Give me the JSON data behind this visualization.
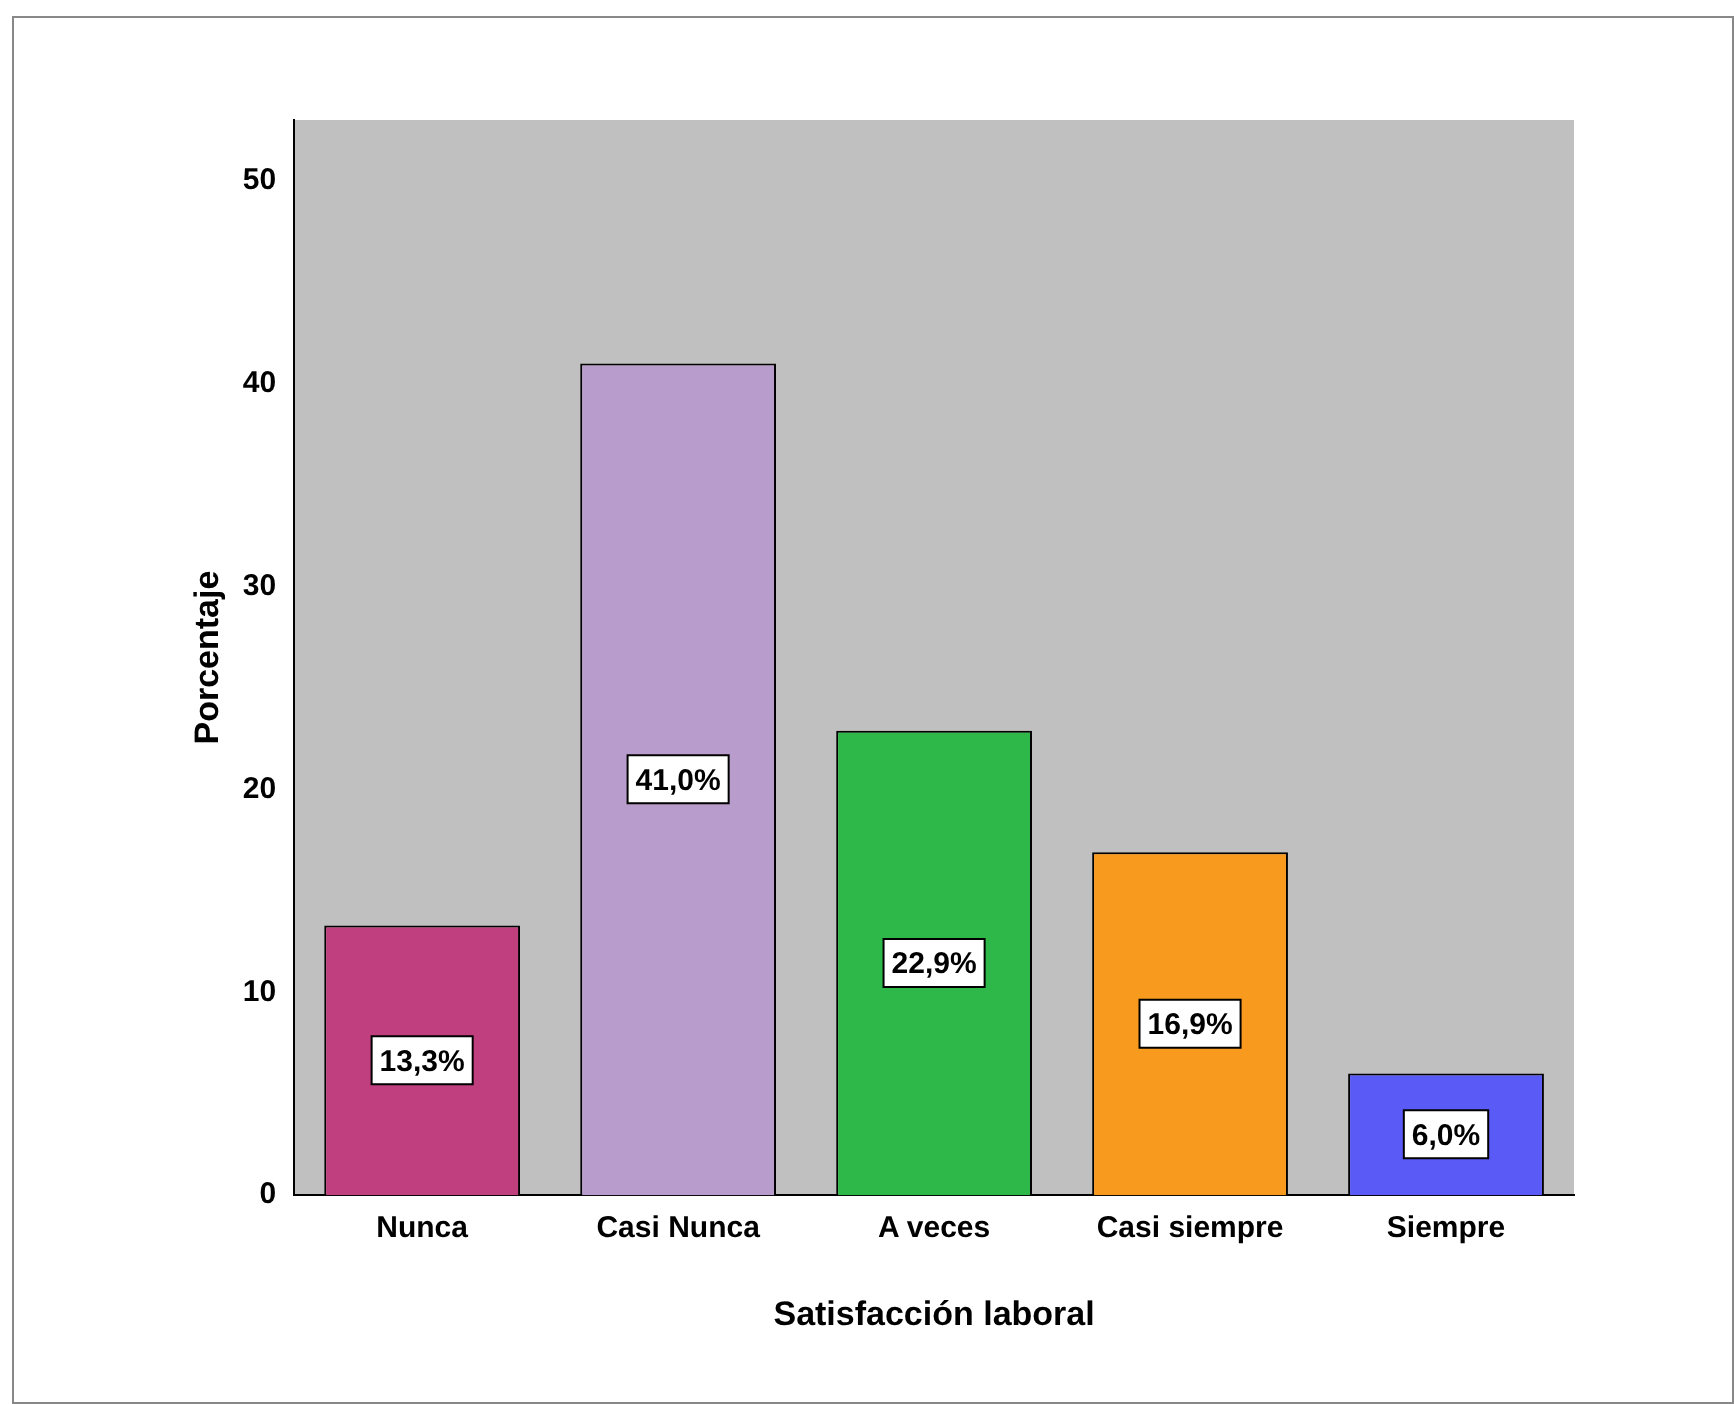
{
  "chart_data": {
    "type": "bar",
    "xlabel": "Satisfacción laboral",
    "ylabel": "Porcentaje",
    "categories": [
      "Nunca",
      "Casi Nunca",
      "A veces",
      "Casi siempre",
      "Siempre"
    ],
    "values": [
      13.3,
      41.0,
      22.9,
      16.9,
      6.0
    ],
    "colors": [
      "#bf3f7f",
      "#b89ccb",
      "#2fb84a",
      "#f79a1d",
      "#5a5af7"
    ],
    "value_labels": [
      "13,3%",
      "41,0%",
      "22,9%",
      "16,9%",
      "6,0%"
    ],
    "ylim": [
      0,
      53
    ],
    "yticks": [
      0,
      10,
      20,
      30,
      40,
      50
    ],
    "grid": false,
    "legend": false
  }
}
